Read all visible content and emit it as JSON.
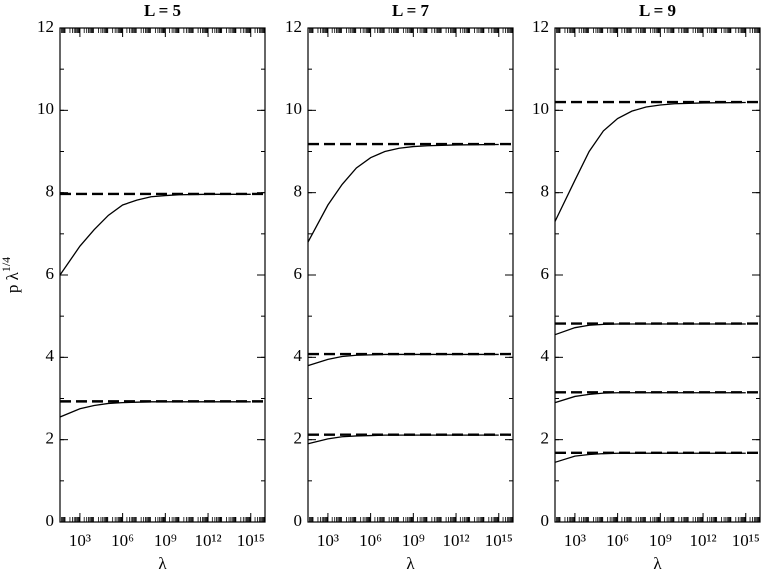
{
  "chart_data": [
    {
      "type": "line",
      "title": "L = 5",
      "xlabel": "λ",
      "ylabel": "p λ",
      "ylabel_superscript": "1/4",
      "xscale": "log",
      "xlim": [
        40,
        1e+16
      ],
      "ylim": [
        0,
        12
      ],
      "yticks": [
        0,
        2,
        4,
        6,
        8,
        10,
        12
      ],
      "xticks": [
        {
          "value": 1000,
          "label": "10³"
        },
        {
          "value": 1000000,
          "label": "10⁶"
        },
        {
          "value": 1000000000,
          "label": "10⁹"
        },
        {
          "value": 1000000000000,
          "label": "10¹²"
        },
        {
          "value": 1000000000000000,
          "label": "10¹⁵"
        }
      ],
      "x": [
        40,
        1000,
        10000,
        100000,
        1000000,
        10000000,
        100000000,
        1000000000,
        10000000000,
        1000000000000,
        1000000000000000
      ],
      "series": [
        {
          "color": "#000000",
          "dashed": true,
          "x": [
            40,
            1e+16
          ],
          "values": [
            7.97,
            7.97
          ]
        },
        {
          "color": "#000000",
          "values": [
            6.0,
            6.7,
            7.1,
            7.45,
            7.7,
            7.82,
            7.9,
            7.93,
            7.95,
            7.96,
            7.96
          ]
        },
        {
          "color": "#000000",
          "dashed": true,
          "x": [
            40,
            1e+16
          ],
          "values": [
            2.93,
            2.93
          ]
        },
        {
          "color": "#000000",
          "values": [
            2.55,
            2.75,
            2.83,
            2.88,
            2.9,
            2.91,
            2.92,
            2.92,
            2.92,
            2.92,
            2.92
          ]
        }
      ]
    },
    {
      "type": "line",
      "title": "L = 7",
      "xlabel": "λ",
      "xscale": "log",
      "xlim": [
        40,
        1e+16
      ],
      "ylim": [
        0,
        12
      ],
      "yticks": [
        0,
        2,
        4,
        6,
        8,
        10,
        12
      ],
      "xticks": [
        {
          "value": 1000,
          "label": "10³"
        },
        {
          "value": 1000000,
          "label": "10⁶"
        },
        {
          "value": 1000000000,
          "label": "10⁹"
        },
        {
          "value": 1000000000000,
          "label": "10¹²"
        },
        {
          "value": 1000000000000000,
          "label": "10¹⁵"
        }
      ],
      "x": [
        40,
        1000,
        10000,
        100000,
        1000000,
        10000000,
        100000000,
        1000000000,
        10000000000,
        1000000000000,
        1000000000000000
      ],
      "series": [
        {
          "color": "#000000",
          "dashed": true,
          "x": [
            40,
            1e+16
          ],
          "values": [
            9.18,
            9.18
          ]
        },
        {
          "color": "#000000",
          "values": [
            6.8,
            7.7,
            8.2,
            8.6,
            8.85,
            9.0,
            9.08,
            9.12,
            9.14,
            9.16,
            9.17
          ]
        },
        {
          "color": "#000000",
          "dashed": true,
          "x": [
            40,
            1e+16
          ],
          "values": [
            4.08,
            4.08
          ]
        },
        {
          "color": "#000000",
          "values": [
            3.8,
            3.95,
            4.02,
            4.05,
            4.06,
            4.07,
            4.07,
            4.07,
            4.07,
            4.07,
            4.07
          ]
        },
        {
          "color": "#000000",
          "dashed": true,
          "x": [
            40,
            1e+16
          ],
          "values": [
            2.12,
            2.12
          ]
        },
        {
          "color": "#000000",
          "values": [
            1.9,
            2.02,
            2.07,
            2.09,
            2.1,
            2.11,
            2.11,
            2.11,
            2.11,
            2.11,
            2.11
          ]
        }
      ]
    },
    {
      "type": "line",
      "title": "L = 9",
      "xlabel": "λ",
      "xscale": "log",
      "xlim": [
        40,
        1e+16
      ],
      "ylim": [
        0,
        12
      ],
      "yticks": [
        0,
        2,
        4,
        6,
        8,
        10,
        12
      ],
      "xticks": [
        {
          "value": 1000,
          "label": "10³"
        },
        {
          "value": 1000000,
          "label": "10⁶"
        },
        {
          "value": 1000000000,
          "label": "10⁹"
        },
        {
          "value": 1000000000000,
          "label": "10¹²"
        },
        {
          "value": 1000000000000000,
          "label": "10¹⁵"
        }
      ],
      "x": [
        40,
        1000,
        10000,
        100000,
        1000000,
        10000000,
        100000000,
        1000000000,
        10000000000,
        1000000000000,
        1000000000000000
      ],
      "series": [
        {
          "color": "#000000",
          "dashed": true,
          "x": [
            40,
            1e+16
          ],
          "values": [
            10.2,
            10.2
          ]
        },
        {
          "color": "#000000",
          "values": [
            7.3,
            8.3,
            9.0,
            9.5,
            9.8,
            9.98,
            10.08,
            10.13,
            10.16,
            10.18,
            10.19
          ]
        },
        {
          "color": "#000000",
          "dashed": true,
          "x": [
            40,
            1e+16
          ],
          "values": [
            4.82,
            4.82
          ]
        },
        {
          "color": "#000000",
          "values": [
            4.55,
            4.72,
            4.78,
            4.8,
            4.81,
            4.81,
            4.81,
            4.81,
            4.81,
            4.81,
            4.81
          ]
        },
        {
          "color": "#000000",
          "dashed": true,
          "x": [
            40,
            1e+16
          ],
          "values": [
            3.15,
            3.15
          ]
        },
        {
          "color": "#000000",
          "values": [
            2.9,
            3.05,
            3.1,
            3.13,
            3.14,
            3.14,
            3.14,
            3.14,
            3.14,
            3.14,
            3.14
          ]
        },
        {
          "color": "#000000",
          "dashed": true,
          "x": [
            40,
            1e+16
          ],
          "values": [
            1.68,
            1.68
          ]
        },
        {
          "color": "#000000",
          "values": [
            1.45,
            1.6,
            1.64,
            1.66,
            1.67,
            1.67,
            1.67,
            1.67,
            1.67,
            1.67,
            1.67
          ]
        }
      ]
    }
  ]
}
